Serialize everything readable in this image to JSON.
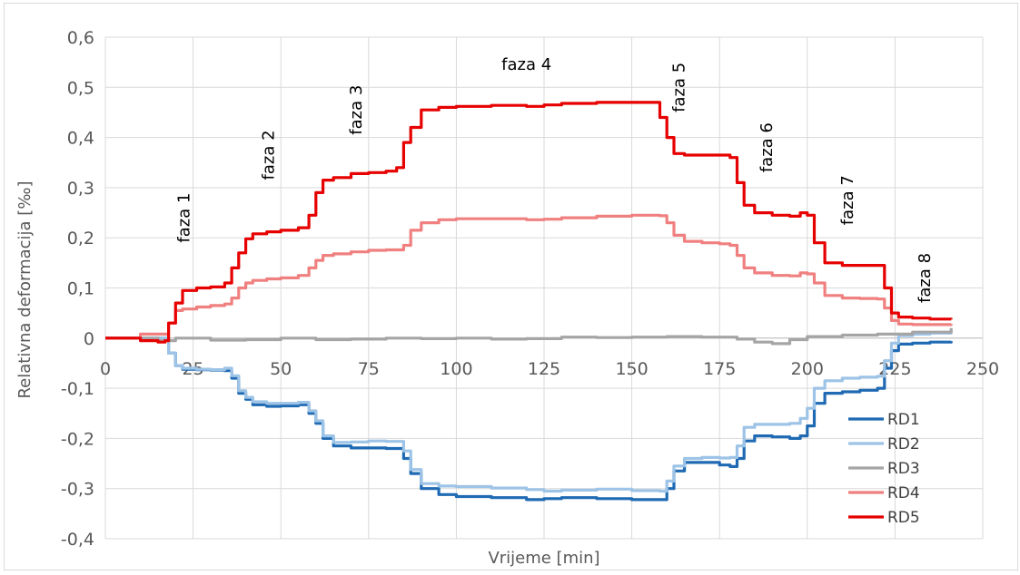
{
  "chart_data": {
    "type": "line",
    "title": "",
    "xlabel": "Vrijeme [min]",
    "ylabel": "Relativna deformacija [‰]",
    "xlim": [
      0,
      250
    ],
    "ylim": [
      -0.4,
      0.6
    ],
    "x_ticks": [
      "0",
      "25",
      "50",
      "75",
      "100",
      "125",
      "150",
      "175",
      "200",
      "225",
      "250"
    ],
    "y_ticks": [
      "0,6",
      "0,5",
      "0,4",
      "0,3",
      "0,2",
      "0,1",
      "0",
      "-0,1",
      "-0,2",
      "-0,3",
      "-0,4"
    ],
    "grid": true,
    "legend_position": "right-bottom",
    "annotations": [
      {
        "text": "faza 1",
        "x": 24,
        "y": 0.24
      },
      {
        "text": "faza 2",
        "x": 48,
        "y": 0.365
      },
      {
        "text": "faza 3",
        "x": 73,
        "y": 0.455
      },
      {
        "text": "faza 4",
        "x": 120,
        "y": 0.535
      },
      {
        "text": "faza 5",
        "x": 165,
        "y": 0.5
      },
      {
        "text": "faza 6",
        "x": 190,
        "y": 0.38
      },
      {
        "text": "faza 7",
        "x": 213,
        "y": 0.275
      },
      {
        "text": "faza 8",
        "x": 235,
        "y": 0.12
      }
    ],
    "series": [
      {
        "name": "RD1",
        "color": "#1f6ab3",
        "x": [
          0,
          15,
          18,
          20,
          22,
          26,
          30,
          34,
          36,
          38,
          40,
          42,
          46,
          50,
          55,
          58,
          60,
          62,
          65,
          70,
          75,
          80,
          85,
          87,
          90,
          95,
          100,
          110,
          120,
          125,
          130,
          140,
          150,
          158,
          160,
          162,
          165,
          170,
          175,
          178,
          180,
          182,
          185,
          190,
          195,
          198,
          200,
          202,
          205,
          210,
          215,
          220,
          222,
          224,
          226,
          230,
          235,
          241
        ],
        "y": [
          0,
          0,
          -0.03,
          -0.055,
          -0.062,
          -0.063,
          -0.064,
          -0.065,
          -0.08,
          -0.11,
          -0.122,
          -0.133,
          -0.136,
          -0.135,
          -0.133,
          -0.15,
          -0.17,
          -0.2,
          -0.215,
          -0.219,
          -0.219,
          -0.22,
          -0.24,
          -0.27,
          -0.3,
          -0.312,
          -0.316,
          -0.318,
          -0.322,
          -0.32,
          -0.318,
          -0.32,
          -0.322,
          -0.322,
          -0.3,
          -0.265,
          -0.248,
          -0.248,
          -0.253,
          -0.256,
          -0.24,
          -0.205,
          -0.195,
          -0.197,
          -0.2,
          -0.195,
          -0.175,
          -0.13,
          -0.11,
          -0.107,
          -0.104,
          -0.1,
          -0.06,
          -0.025,
          -0.012,
          -0.01,
          -0.008,
          -0.006
        ]
      },
      {
        "name": "RD2",
        "color": "#9dc3e6",
        "x": [
          0,
          15,
          18,
          20,
          22,
          26,
          30,
          34,
          36,
          38,
          40,
          42,
          46,
          50,
          55,
          58,
          60,
          62,
          65,
          70,
          75,
          80,
          85,
          87,
          90,
          95,
          100,
          110,
          120,
          125,
          130,
          140,
          150,
          158,
          160,
          162,
          165,
          170,
          175,
          178,
          180,
          182,
          185,
          190,
          195,
          198,
          200,
          202,
          205,
          210,
          215,
          220,
          222,
          224,
          226,
          230,
          235,
          241
        ],
        "y": [
          0,
          0,
          -0.03,
          -0.055,
          -0.06,
          -0.062,
          -0.063,
          -0.06,
          -0.075,
          -0.105,
          -0.118,
          -0.127,
          -0.13,
          -0.13,
          -0.128,
          -0.145,
          -0.165,
          -0.195,
          -0.208,
          -0.207,
          -0.205,
          -0.206,
          -0.225,
          -0.262,
          -0.29,
          -0.295,
          -0.296,
          -0.299,
          -0.302,
          -0.305,
          -0.303,
          -0.301,
          -0.304,
          -0.305,
          -0.285,
          -0.255,
          -0.24,
          -0.238,
          -0.239,
          -0.238,
          -0.215,
          -0.178,
          -0.172,
          -0.172,
          -0.17,
          -0.16,
          -0.14,
          -0.1,
          -0.085,
          -0.08,
          -0.078,
          -0.076,
          -0.045,
          -0.01,
          0.005,
          0.008,
          0.01,
          0.012
        ]
      },
      {
        "name": "RD3",
        "color": "#a5a5a5",
        "x": [
          0,
          15,
          20,
          30,
          40,
          50,
          60,
          70,
          80,
          90,
          100,
          110,
          120,
          130,
          140,
          150,
          160,
          170,
          180,
          185,
          190,
          195,
          200,
          210,
          220,
          230,
          241
        ],
        "y": [
          0,
          -0.005,
          0,
          -0.004,
          -0.003,
          0,
          -0.003,
          -0.002,
          0,
          -0.001,
          0,
          -0.002,
          -0.001,
          0.002,
          0.001,
          0.002,
          0.003,
          0.002,
          -0.002,
          -0.008,
          -0.011,
          -0.003,
          0.003,
          0.006,
          0.008,
          0.012,
          0.02
        ]
      },
      {
        "name": "RD4",
        "color": "#f08080",
        "x": [
          0,
          10,
          15,
          18,
          20,
          22,
          26,
          30,
          34,
          36,
          38,
          40,
          42,
          46,
          50,
          55,
          58,
          60,
          62,
          65,
          70,
          75,
          80,
          85,
          87,
          90,
          95,
          100,
          110,
          120,
          125,
          130,
          140,
          150,
          158,
          160,
          162,
          165,
          170,
          175,
          178,
          180,
          182,
          185,
          190,
          195,
          198,
          200,
          202,
          205,
          210,
          215,
          220,
          222,
          224,
          226,
          230,
          235,
          241
        ],
        "y": [
          0,
          0.008,
          0.008,
          0.03,
          0.055,
          0.058,
          0.062,
          0.065,
          0.068,
          0.08,
          0.1,
          0.11,
          0.115,
          0.118,
          0.12,
          0.125,
          0.14,
          0.155,
          0.165,
          0.168,
          0.172,
          0.175,
          0.176,
          0.185,
          0.215,
          0.23,
          0.236,
          0.238,
          0.238,
          0.236,
          0.237,
          0.24,
          0.243,
          0.245,
          0.244,
          0.23,
          0.205,
          0.193,
          0.19,
          0.188,
          0.185,
          0.165,
          0.14,
          0.13,
          0.125,
          0.124,
          0.13,
          0.128,
          0.11,
          0.085,
          0.08,
          0.079,
          0.078,
          0.06,
          0.035,
          0.028,
          0.027,
          0.027,
          0.028
        ]
      },
      {
        "name": "RD5",
        "color": "#e60000",
        "x": [
          0,
          10,
          15,
          17,
          18,
          20,
          22,
          26,
          30,
          34,
          36,
          38,
          40,
          42,
          46,
          50,
          55,
          58,
          60,
          62,
          65,
          70,
          75,
          80,
          83,
          85,
          87,
          90,
          95,
          100,
          110,
          120,
          125,
          130,
          140,
          150,
          156,
          158,
          160,
          162,
          165,
          170,
          175,
          178,
          180,
          182,
          185,
          190,
          195,
          198,
          200,
          202,
          205,
          210,
          215,
          220,
          222,
          224,
          226,
          230,
          235,
          241
        ],
        "y": [
          0,
          -0.005,
          -0.008,
          -0.005,
          0.03,
          0.07,
          0.095,
          0.1,
          0.102,
          0.11,
          0.14,
          0.17,
          0.198,
          0.208,
          0.212,
          0.215,
          0.22,
          0.245,
          0.29,
          0.315,
          0.32,
          0.328,
          0.33,
          0.333,
          0.34,
          0.39,
          0.42,
          0.455,
          0.46,
          0.462,
          0.464,
          0.462,
          0.465,
          0.468,
          0.47,
          0.47,
          0.47,
          0.44,
          0.4,
          0.368,
          0.365,
          0.365,
          0.365,
          0.36,
          0.31,
          0.265,
          0.25,
          0.245,
          0.243,
          0.25,
          0.245,
          0.19,
          0.15,
          0.145,
          0.145,
          0.145,
          0.1,
          0.05,
          0.042,
          0.04,
          0.038,
          0.037
        ]
      }
    ]
  }
}
